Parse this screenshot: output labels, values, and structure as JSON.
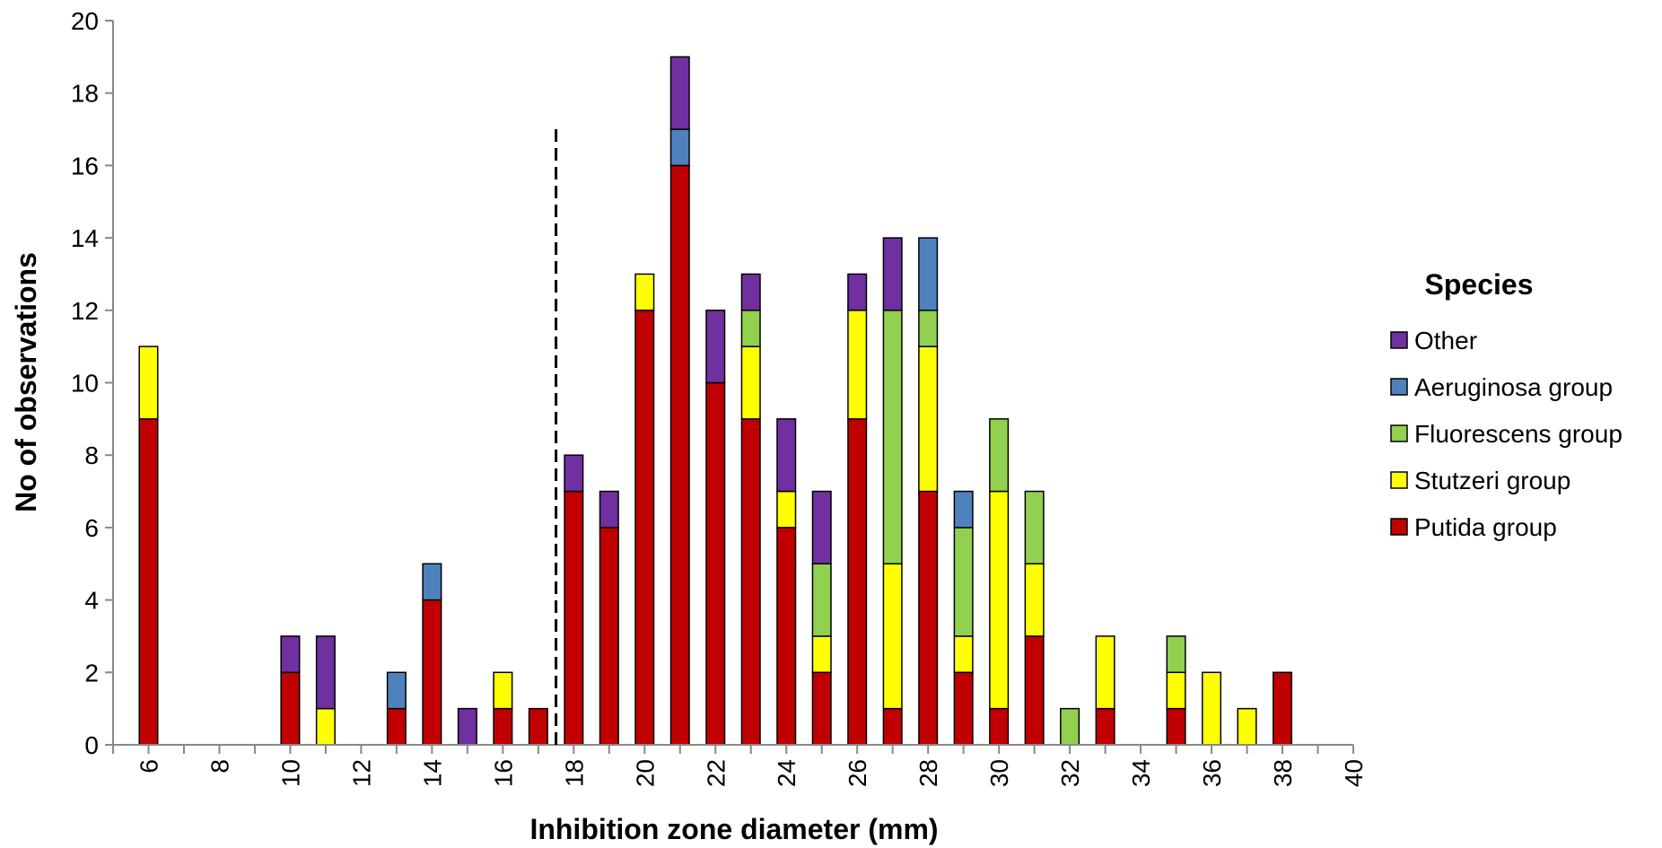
{
  "chart_data": {
    "type": "bar",
    "stacked": true,
    "xlabel": "Inhibition zone diameter (mm)",
    "ylabel": "No of observations",
    "xlim": [
      5,
      40
    ],
    "ylim": [
      0,
      20
    ],
    "x_ticks": [
      6,
      8,
      10,
      12,
      14,
      16,
      18,
      20,
      22,
      24,
      26,
      28,
      30,
      32,
      34,
      36,
      38,
      40
    ],
    "y_ticks": [
      0,
      2,
      4,
      6,
      8,
      10,
      12,
      14,
      16,
      18,
      20
    ],
    "grid": false,
    "breakpoint_line": {
      "x": 17.5,
      "y_top": 17,
      "style": "dashed"
    },
    "legend": {
      "title": "Species",
      "position": "right"
    },
    "x": [
      6,
      10,
      11,
      13,
      14,
      15,
      16,
      17,
      18,
      19,
      20,
      21,
      22,
      23,
      24,
      25,
      26,
      27,
      28,
      29,
      30,
      31,
      32,
      33,
      35,
      36,
      37,
      38
    ],
    "series": [
      {
        "name": "Putida group",
        "color": "#c00000",
        "values": [
          9,
          2,
          0,
          1,
          4,
          0,
          1,
          1,
          7,
          6,
          12,
          16,
          10,
          9,
          6,
          2,
          9,
          1,
          7,
          2,
          1,
          3,
          0,
          1,
          1,
          0,
          0,
          2
        ]
      },
      {
        "name": "Stutzeri group",
        "color": "#ffff00",
        "values": [
          2,
          0,
          1,
          0,
          0,
          0,
          1,
          0,
          0,
          0,
          1,
          0,
          0,
          2,
          1,
          1,
          3,
          4,
          4,
          1,
          6,
          2,
          0,
          2,
          1,
          2,
          1,
          0
        ]
      },
      {
        "name": "Fluorescens group",
        "color": "#92d050",
        "values": [
          0,
          0,
          0,
          0,
          0,
          0,
          0,
          0,
          0,
          0,
          0,
          0,
          0,
          1,
          0,
          2,
          0,
          7,
          1,
          3,
          2,
          2,
          1,
          0,
          1,
          0,
          0,
          0
        ]
      },
      {
        "name": "Aeruginosa group",
        "color": "#4f81bd",
        "values": [
          0,
          0,
          0,
          1,
          1,
          0,
          0,
          0,
          0,
          0,
          0,
          1,
          0,
          0,
          0,
          0,
          0,
          0,
          2,
          1,
          0,
          0,
          0,
          0,
          0,
          0,
          0,
          0
        ]
      },
      {
        "name": "Other",
        "color": "#7030a0",
        "values": [
          0,
          1,
          2,
          0,
          0,
          1,
          0,
          0,
          1,
          1,
          0,
          2,
          2,
          1,
          2,
          2,
          1,
          2,
          0,
          0,
          0,
          0,
          0,
          0,
          0,
          0,
          0,
          0
        ]
      }
    ],
    "legend_order": [
      "Other",
      "Aeruginosa group",
      "Fluorescens group",
      "Stutzeri group",
      "Putida group"
    ]
  }
}
